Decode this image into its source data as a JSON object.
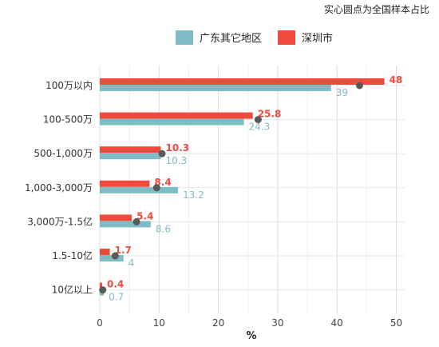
{
  "note": "实心圆点为全国样本占比",
  "chart_data": {
    "type": "bar",
    "orientation": "horizontal",
    "categories": [
      "100万以内",
      "100-500万",
      "500-1,000万",
      "1,000-3,000万",
      "3,000万-1.5亿",
      "1.5-10亿",
      "10亿以上"
    ],
    "series": [
      {
        "name": "深圳市",
        "color": "#f04a3c",
        "values": [
          48,
          25.8,
          10.3,
          8.4,
          5.4,
          1.7,
          0.4
        ]
      },
      {
        "name": "广东其它地区",
        "color": "#7fbcc6",
        "values": [
          39,
          24.3,
          10.3,
          13.2,
          8.6,
          4,
          0.7
        ]
      }
    ],
    "value_labels": {
      "深圳市": [
        "48",
        "25.8",
        "10.3",
        "8.4",
        "5.4",
        "1.7",
        "0.4"
      ],
      "广东其它地区": [
        "39",
        "24.3",
        "10.3",
        "13.2",
        "8.6",
        "4",
        "0.7"
      ]
    },
    "national_points": [
      43.8,
      26.7,
      10.5,
      9.6,
      6.2,
      2.6,
      0.5
    ],
    "legend_order": [
      "广东其它地区",
      "深圳市"
    ],
    "legend_position": "top",
    "xlabel": "%",
    "xlim": [
      0,
      52
    ],
    "xticks": [
      0,
      10,
      20,
      30,
      40,
      50
    ],
    "point_color": "#5a5a5a",
    "grid": true
  }
}
